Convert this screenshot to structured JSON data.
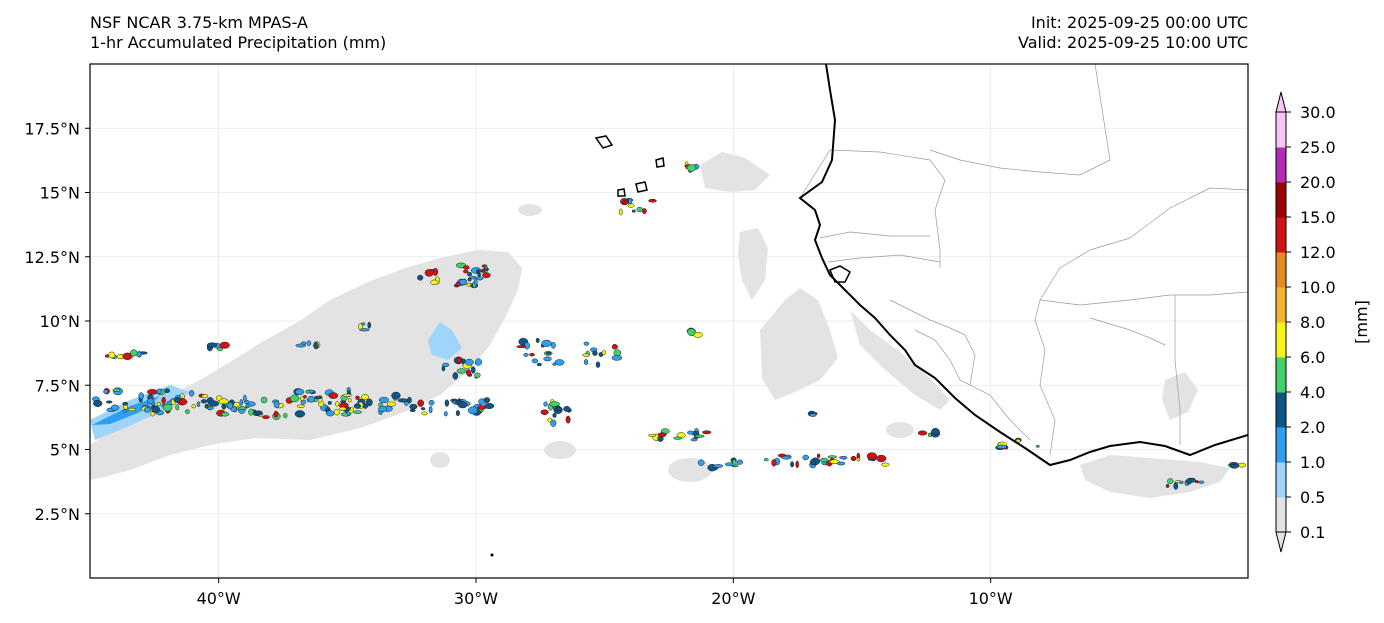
{
  "header": {
    "model": "NSF NCAR 3.75-km MPAS-A",
    "field": "1-hr Accumulated Precipitation (mm)",
    "init": "Init: 2025-09-25 00:00 UTC",
    "valid": "Valid: 2025-09-25 10:00 UTC"
  },
  "map": {
    "lon_range": [
      -45,
      0
    ],
    "lat_range": [
      0,
      20
    ],
    "lon_ticks": [
      {
        "value": -40,
        "label": "40°W"
      },
      {
        "value": -30,
        "label": "30°W"
      },
      {
        "value": -20,
        "label": "20°W"
      },
      {
        "value": -10,
        "label": "10°W"
      }
    ],
    "lat_ticks": [
      {
        "value": 2.5,
        "label": "2.5°N"
      },
      {
        "value": 5,
        "label": "5°N"
      },
      {
        "value": 7.5,
        "label": "7.5°N"
      },
      {
        "value": 10,
        "label": "10°N"
      },
      {
        "value": 12.5,
        "label": "12.5°N"
      },
      {
        "value": 15,
        "label": "15°N"
      },
      {
        "value": 17.5,
        "label": "17.5°N"
      }
    ],
    "gridlines": true
  },
  "colorbar": {
    "unit_label": "[mm]",
    "levels": [
      "0.1",
      "0.5",
      "1.0",
      "2.0",
      "4.0",
      "6.0",
      "8.0",
      "10.0",
      "12.0",
      "15.0",
      "20.0",
      "25.0",
      "30.0"
    ],
    "colors": [
      "#e3e3e3",
      "#9fd4fb",
      "#2f9ff2",
      "#0f5687",
      "#43d16a",
      "#f7f319",
      "#f3b431",
      "#e88a22",
      "#cf1212",
      "#9a0404",
      "#b22bb3",
      "#f8c5f7"
    ],
    "extend": "both"
  }
}
